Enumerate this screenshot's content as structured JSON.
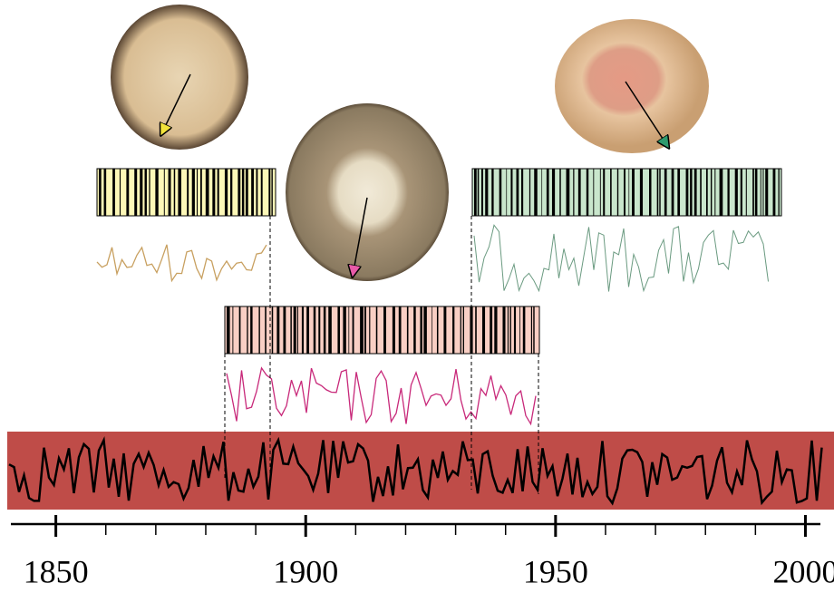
{
  "axis": {
    "xlim": [
      1841,
      2003
    ],
    "major_ticks": [
      1850,
      1900,
      1950,
      2000
    ],
    "minor_ticks": [
      1860,
      1870,
      1880,
      1890,
      1910,
      1920,
      1930,
      1940,
      1960,
      1970,
      1980,
      1990
    ]
  }
}
